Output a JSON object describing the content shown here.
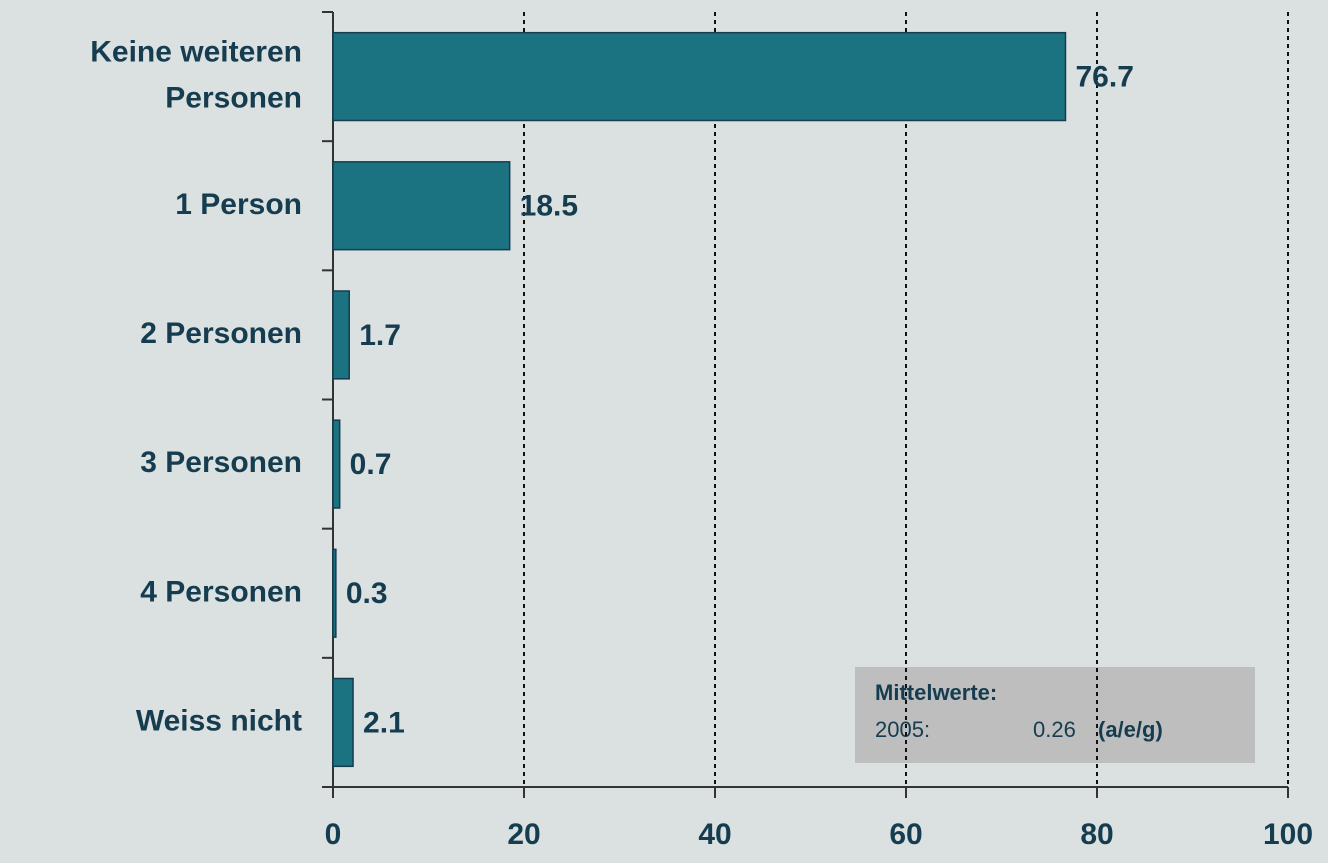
{
  "chart_data": {
    "type": "barh",
    "categories": [
      "Keine weiteren\nPersonen",
      "1 Person",
      "2 Personen",
      "3 Personen",
      "4 Personen",
      "Weiss nicht"
    ],
    "values": [
      76.7,
      18.5,
      1.7,
      0.7,
      0.3,
      2.1
    ],
    "color": "#1b7280",
    "xlim": [
      0,
      100
    ],
    "xticks": [
      0,
      20,
      40,
      60,
      80,
      100
    ],
    "grid": true,
    "annotation": {
      "title": "Mittelwerte:",
      "year": "2005:",
      "value": 0.26,
      "note": "(a/e/g)"
    }
  }
}
